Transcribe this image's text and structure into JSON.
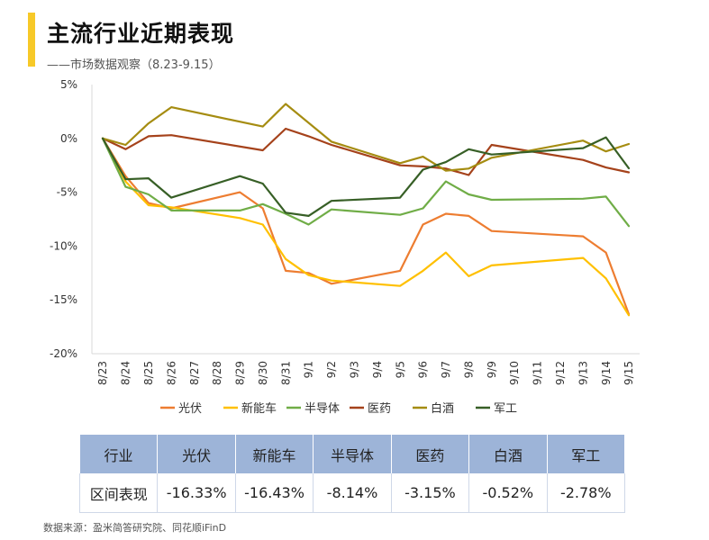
{
  "header": {
    "title": "主流行业近期表现",
    "subtitle": "——市场数据观察（8.23-9.15）"
  },
  "chart_data": {
    "type": "line",
    "title": "主流行业近期表现",
    "xlabel": "",
    "ylabel": "",
    "ylim": [
      -20,
      5
    ],
    "yticks": [
      5,
      0,
      -5,
      -10,
      -15,
      -20
    ],
    "ytick_labels": [
      "5%",
      "0%",
      "-5%",
      "-10%",
      "-15%",
      "-20%"
    ],
    "x": [
      "8/23",
      "8/24",
      "8/25",
      "8/26",
      "8/27",
      "8/28",
      "8/29",
      "8/30",
      "8/31",
      "9/1",
      "9/2",
      "9/3",
      "9/4",
      "9/5",
      "9/6",
      "9/7",
      "9/8",
      "9/9",
      "9/10",
      "9/11",
      "9/12",
      "9/13",
      "9/14",
      "9/15"
    ],
    "grid": false,
    "legend_position": "bottom",
    "series": [
      {
        "name": "光伏",
        "color": "#ed7d31",
        "values": [
          0,
          -3.5,
          -6.0,
          -6.5,
          null,
          null,
          -5.0,
          -6.5,
          -12.3,
          -12.5,
          -13.5,
          null,
          null,
          -12.3,
          -8.0,
          -7.0,
          -7.2,
          -8.6,
          null,
          null,
          null,
          -9.1,
          -10.6,
          -16.33
        ]
      },
      {
        "name": "新能车",
        "color": "#ffc000",
        "values": [
          0,
          -4.0,
          -6.2,
          -6.4,
          null,
          null,
          -7.4,
          -8.0,
          -11.2,
          -12.7,
          -13.2,
          null,
          null,
          -13.7,
          -12.3,
          -10.6,
          -12.8,
          -11.8,
          null,
          null,
          null,
          -11.1,
          -13.0,
          -16.43
        ]
      },
      {
        "name": "半导体",
        "color": "#70ad47",
        "values": [
          0,
          -4.5,
          -5.2,
          -6.7,
          null,
          null,
          -6.7,
          -6.1,
          -7.0,
          -8.0,
          -6.6,
          null,
          null,
          -7.1,
          -6.5,
          -4.0,
          -5.2,
          -5.7,
          null,
          null,
          null,
          -5.6,
          -5.4,
          -8.14
        ]
      },
      {
        "name": "医药",
        "color": "#a5421b",
        "values": [
          0,
          -1.0,
          0.2,
          0.3,
          null,
          null,
          null,
          -1.1,
          0.9,
          0.2,
          -0.6,
          null,
          null,
          -2.5,
          -2.6,
          -2.8,
          -3.4,
          -0.6,
          null,
          null,
          null,
          -2.0,
          -2.7,
          -3.15
        ]
      },
      {
        "name": "白酒",
        "color": "#a58c11",
        "values": [
          0,
          -0.6,
          1.4,
          2.9,
          null,
          null,
          null,
          1.1,
          3.2,
          null,
          -0.3,
          null,
          null,
          -2.3,
          -1.7,
          -3.0,
          -2.8,
          -1.8,
          null,
          null,
          null,
          -0.2,
          -1.2,
          -0.52
        ]
      },
      {
        "name": "军工",
        "color": "#375f26",
        "values": [
          0,
          -3.8,
          -3.7,
          -5.5,
          null,
          null,
          -3.5,
          -4.2,
          -6.9,
          -7.2,
          -5.8,
          null,
          null,
          -5.5,
          -2.9,
          -2.2,
          -1.0,
          -1.5,
          null,
          null,
          null,
          -0.9,
          0.1,
          -2.78
        ]
      }
    ]
  },
  "table": {
    "headers": [
      "行业",
      "光伏",
      "新能车",
      "半导体",
      "医药",
      "白酒",
      "军工"
    ],
    "row_label": "区间表现",
    "values": [
      "-16.33%",
      "-16.43%",
      "-8.14%",
      "-3.15%",
      "-0.52%",
      "-2.78%"
    ]
  },
  "footer": {
    "source": "数据来源：盈米简答研究院、同花顺iFinD"
  }
}
